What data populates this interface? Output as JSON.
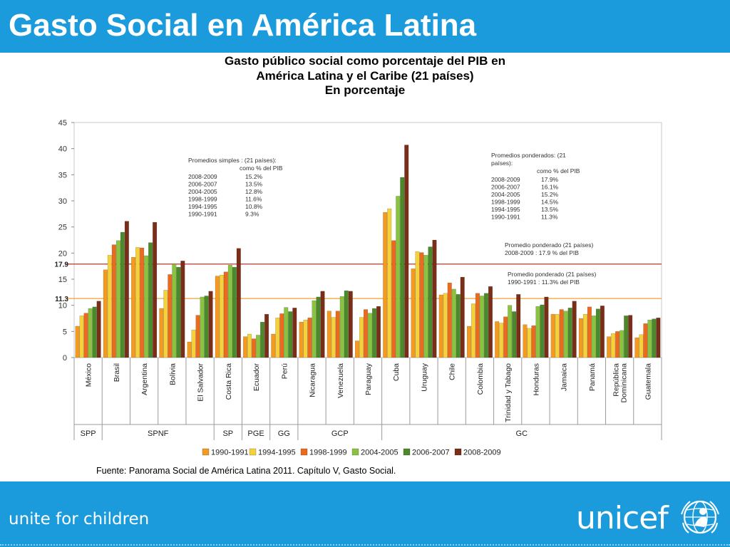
{
  "slide_title": "Gasto Social en América Latina",
  "chart_title_lines": [
    "Gasto público social como porcentaje del PIB en",
    "América Latina y el Caribe (21 países)",
    "En porcentaje"
  ],
  "source": "Fuente: Panorama Social de América Latina 2011. Capítulo V, Gasto Social.",
  "footer": {
    "slogan": "unite for children",
    "brand": "unicef"
  },
  "colors": {
    "header_bg": "#1c9bdc",
    "series": [
      "#f49a20",
      "#f5d23a",
      "#ec6a1d",
      "#8ac33f",
      "#4a8a2a",
      "#7a2e18"
    ],
    "ref_high": "#b43a2a",
    "ref_low": "#f0a030"
  },
  "chart_data": {
    "type": "bar",
    "title": "Gasto público social como porcentaje del PIB en América Latina y el Caribe (21 países) En porcentaje",
    "ylim": [
      0,
      45
    ],
    "yticks": [
      0,
      5,
      10,
      15,
      20,
      25,
      30,
      35,
      40,
      45
    ],
    "grid": false,
    "legend_position": "bottom",
    "categories": [
      "México",
      "Brasil",
      "Argentina",
      "Bolivia",
      "El Salvador",
      "Costa Rica",
      "Ecuador",
      "Perú",
      "Nicaragua",
      "Venezuela",
      "Paraguay",
      "Cuba",
      "Uruguay",
      "Chile",
      "Colombia",
      "Trinidad y Tabago",
      "Honduras",
      "Jamaica",
      "Panamá",
      "República Dominicana",
      "Guatemala"
    ],
    "category_lines": [
      [
        "México"
      ],
      [
        "Brasil"
      ],
      [
        "Argentina"
      ],
      [
        "Bolivia"
      ],
      [
        "El Salvador"
      ],
      [
        "Costa Rica"
      ],
      [
        "Ecuador"
      ],
      [
        "Perú"
      ],
      [
        "Nicaragua"
      ],
      [
        "Venezuela"
      ],
      [
        "Paraguay"
      ],
      [
        "Cuba"
      ],
      [
        "Uruguay"
      ],
      [
        "Chile"
      ],
      [
        "Colombia"
      ],
      [
        "Trinidad y Tabago"
      ],
      [
        "Honduras"
      ],
      [
        "Jamaica"
      ],
      [
        "Panamá"
      ],
      [
        "República",
        "Dominicana"
      ],
      [
        "Guatemala"
      ]
    ],
    "series": [
      {
        "name": "1990-1991",
        "values": [
          6.0,
          16.8,
          19.2,
          9.4,
          3.0,
          15.6,
          4.0,
          4.5,
          6.8,
          8.9,
          3.2,
          27.8,
          17.0,
          12.0,
          6.0,
          6.9,
          6.3,
          8.3,
          7.5,
          4.0,
          3.8
        ]
      },
      {
        "name": "1994-1995",
        "values": [
          8.0,
          19.6,
          21.1,
          12.9,
          5.3,
          15.8,
          4.5,
          7.6,
          7.2,
          7.7,
          7.7,
          28.5,
          20.3,
          12.3,
          10.3,
          6.6,
          5.6,
          8.3,
          8.3,
          4.6,
          4.4
        ]
      },
      {
        "name": "1998-1999",
        "values": [
          8.5,
          21.6,
          21.0,
          15.9,
          8.1,
          16.4,
          3.6,
          8.4,
          7.6,
          8.9,
          9.2,
          22.4,
          20.1,
          14.3,
          12.3,
          7.8,
          6.1,
          9.2,
          9.7,
          5.0,
          6.5
        ]
      },
      {
        "name": "2004-2005",
        "values": [
          9.4,
          22.4,
          19.5,
          17.9,
          11.6,
          17.7,
          4.3,
          9.6,
          10.9,
          11.7,
          8.5,
          30.9,
          19.6,
          13.1,
          11.8,
          10.0,
          9.8,
          8.9,
          8.0,
          5.2,
          7.2
        ]
      },
      {
        "name": "2006-2007",
        "values": [
          9.7,
          24.0,
          22.0,
          17.3,
          11.8,
          17.3,
          6.8,
          8.8,
          11.6,
          12.8,
          9.4,
          34.5,
          21.2,
          12.1,
          12.3,
          8.8,
          10.1,
          9.5,
          9.3,
          8.0,
          7.4
        ]
      },
      {
        "name": "2008-2009",
        "values": [
          10.8,
          26.1,
          25.9,
          18.5,
          12.7,
          20.9,
          8.3,
          9.5,
          12.7,
          12.7,
          9.8,
          40.7,
          22.5,
          15.4,
          13.6,
          12.1,
          11.6,
          10.8,
          9.9,
          8.1,
          7.6
        ]
      }
    ],
    "groups": [
      {
        "label": "SPP",
        "members": [
          "México"
        ]
      },
      {
        "label": "SPNF",
        "members": [
          "Brasil",
          "Argentina",
          "Bolivia",
          "El Salvador"
        ]
      },
      {
        "label": "SP",
        "members": [
          "Costa Rica"
        ]
      },
      {
        "label": "PGE",
        "members": [
          "Ecuador"
        ]
      },
      {
        "label": "GG",
        "members": [
          "Perú"
        ]
      },
      {
        "label": "GCP",
        "members": [
          "Nicaragua",
          "Venezuela",
          "Paraguay"
        ]
      },
      {
        "label": "GC",
        "members": [
          "Cuba",
          "Uruguay",
          "Chile",
          "Colombia",
          "Trinidad y Tabago",
          "Honduras",
          "Jamaica",
          "Panamá",
          "República Dominicana",
          "Guatemala"
        ]
      }
    ],
    "reference_lines": [
      {
        "value": 17.9,
        "axis_label": "17.9",
        "caption_lines": [
          "Promedio ponderado (21 países)",
          "2008-2009 : 17.9 % del PIB"
        ],
        "color_key": "ref_high"
      },
      {
        "value": 11.3,
        "axis_label": "11.3",
        "caption_lines": [
          "Promedio ponderado (21 países)",
          "1990-1991 : 11.3% del PIB"
        ],
        "color_key": "ref_low"
      }
    ],
    "annotations": [
      {
        "position": "upper-left",
        "lines": [
          "Promedios simples : (21 países):",
          "como % del PIB"
        ],
        "rows": [
          [
            "2008-2009",
            "15.2%"
          ],
          [
            "2006-2007",
            "13.5%"
          ],
          [
            "2004-2005",
            "12.8%"
          ],
          [
            "1998-1999",
            "11.6%"
          ],
          [
            "1994-1995",
            "10.8%"
          ],
          [
            "1990-1991",
            "9.3%"
          ]
        ]
      },
      {
        "position": "upper-right",
        "lines": [
          "Promedios ponderados: (21",
          "países):",
          "como % del PIB"
        ],
        "rows": [
          [
            "2008-2009",
            "17.9%"
          ],
          [
            "2006-2007",
            "16.1%"
          ],
          [
            "2004-2005",
            "15.2%"
          ],
          [
            "1998-1999",
            "14.5%"
          ],
          [
            "1994-1995",
            "13.5%"
          ],
          [
            "1990-1991",
            "11.3%"
          ]
        ]
      }
    ]
  }
}
